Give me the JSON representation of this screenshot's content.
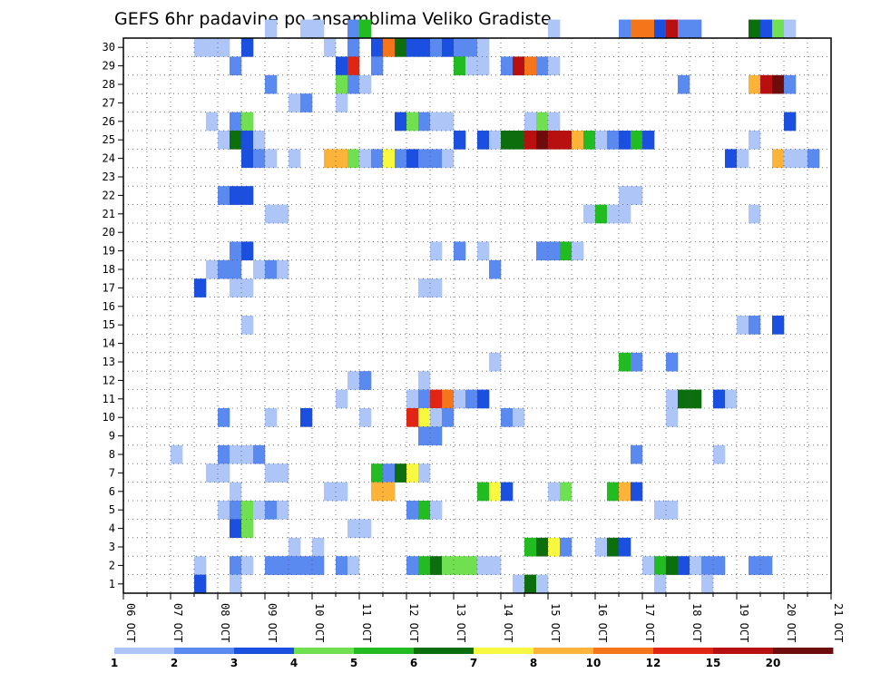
{
  "chart_data": {
    "type": "heatmap",
    "title": "GEFS 6hr padavine po ansamblima Veliko Gradiste",
    "xlabel": "",
    "ylabel": "",
    "x_ticks": [
      "06 OCT",
      "07 OCT",
      "08 OCT",
      "09 OCT",
      "10 OCT",
      "11 OCT",
      "12 OCT",
      "13 OCT",
      "14 OCT",
      "15 OCT",
      "16 OCT",
      "17 OCT",
      "18 OCT",
      "19 OCT",
      "20 OCT",
      "21 OCT"
    ],
    "y_ticks": [
      1,
      2,
      3,
      4,
      5,
      6,
      7,
      8,
      9,
      10,
      11,
      12,
      13,
      14,
      15,
      16,
      17,
      18,
      19,
      20,
      21,
      22,
      23,
      24,
      25,
      26,
      27,
      28,
      29,
      30
    ],
    "x_range_steps": [
      0,
      60
    ],
    "y_range": [
      0,
      30
    ],
    "grid": true,
    "legend_placement": "bottom",
    "legend": {
      "labels": [
        "1",
        "2",
        "3",
        "4",
        "5",
        "6",
        "7",
        "8",
        "10",
        "12",
        "15",
        "20"
      ],
      "colors": [
        "#aec6f7",
        "#5a8af0",
        "#1a4fe0",
        "#70e050",
        "#22bb22",
        "#0d6e0d",
        "#f8f840",
        "#fbb33a",
        "#f5751a",
        "#e02515",
        "#b81010",
        "#6e0b0b"
      ]
    },
    "bins": [
      {
        "min": 1,
        "max": 2,
        "color": "#aec6f7"
      },
      {
        "min": 2,
        "max": 3,
        "color": "#5a8af0"
      },
      {
        "min": 3,
        "max": 4,
        "color": "#1a4fe0"
      },
      {
        "min": 4,
        "max": 5,
        "color": "#70e050"
      },
      {
        "min": 5,
        "max": 6,
        "color": "#22bb22"
      },
      {
        "min": 6,
        "max": 7,
        "color": "#0d6e0d"
      },
      {
        "min": 7,
        "max": 8,
        "color": "#f8f840"
      },
      {
        "min": 8,
        "max": 10,
        "color": "#fbb33a"
      },
      {
        "min": 10,
        "max": 12,
        "color": "#f5751a"
      },
      {
        "min": 12,
        "max": 15,
        "color": "#e02515"
      },
      {
        "min": 15,
        "max": 20,
        "color": "#b81010"
      },
      {
        "min": 20,
        "max": 30,
        "color": "#6e0b0b"
      }
    ],
    "cells": [
      [
        30,
        12,
        0
      ],
      [
        30,
        15,
        0
      ],
      [
        30,
        16,
        0
      ],
      [
        30,
        19,
        1
      ],
      [
        30,
        20,
        4
      ],
      [
        30,
        36,
        0
      ],
      [
        30,
        42,
        1
      ],
      [
        30,
        43,
        8
      ],
      [
        30,
        44,
        8
      ],
      [
        30,
        45,
        2
      ],
      [
        30,
        46,
        10
      ],
      [
        30,
        47,
        1
      ],
      [
        30,
        48,
        1
      ],
      [
        30,
        53,
        5
      ],
      [
        30,
        54,
        2
      ],
      [
        30,
        55,
        3
      ],
      [
        30,
        56,
        0
      ],
      [
        29,
        6,
        0
      ],
      [
        29,
        7,
        0
      ],
      [
        29,
        8,
        0
      ],
      [
        29,
        10,
        2
      ],
      [
        29,
        17,
        0
      ],
      [
        29,
        19,
        1
      ],
      [
        29,
        21,
        2
      ],
      [
        29,
        22,
        8
      ],
      [
        29,
        23,
        5
      ],
      [
        29,
        24,
        2
      ],
      [
        29,
        25,
        2
      ],
      [
        29,
        26,
        1
      ],
      [
        29,
        27,
        2
      ],
      [
        29,
        28,
        1
      ],
      [
        29,
        29,
        1
      ],
      [
        29,
        30,
        0
      ],
      [
        28,
        9,
        1
      ],
      [
        28,
        18,
        2
      ],
      [
        28,
        19,
        9
      ],
      [
        28,
        21,
        1
      ],
      [
        28,
        28,
        4
      ],
      [
        28,
        29,
        0
      ],
      [
        28,
        30,
        0
      ],
      [
        28,
        32,
        1
      ],
      [
        28,
        33,
        10
      ],
      [
        28,
        34,
        8
      ],
      [
        28,
        35,
        1
      ],
      [
        28,
        36,
        0
      ],
      [
        27,
        12,
        1
      ],
      [
        27,
        18,
        3
      ],
      [
        27,
        19,
        1
      ],
      [
        27,
        20,
        0
      ],
      [
        27,
        47,
        1
      ],
      [
        27,
        53,
        7
      ],
      [
        27,
        54,
        10
      ],
      [
        27,
        55,
        11
      ],
      [
        27,
        56,
        1
      ],
      [
        26,
        14,
        0
      ],
      [
        26,
        15,
        1
      ],
      [
        26,
        18,
        0
      ],
      [
        25,
        7,
        0
      ],
      [
        25,
        9,
        1
      ],
      [
        25,
        10,
        3
      ],
      [
        25,
        23,
        2
      ],
      [
        25,
        24,
        3
      ],
      [
        25,
        25,
        1
      ],
      [
        25,
        26,
        0
      ],
      [
        25,
        27,
        0
      ],
      [
        25,
        34,
        0
      ],
      [
        25,
        35,
        3
      ],
      [
        25,
        36,
        0
      ],
      [
        25,
        56,
        2
      ],
      [
        24,
        8,
        0
      ],
      [
        24,
        9,
        5
      ],
      [
        24,
        10,
        2
      ],
      [
        24,
        11,
        0
      ],
      [
        24,
        28,
        2
      ],
      [
        24,
        30,
        2
      ],
      [
        24,
        31,
        0
      ],
      [
        24,
        32,
        5
      ],
      [
        24,
        33,
        5
      ],
      [
        24,
        34,
        10
      ],
      [
        24,
        35,
        11
      ],
      [
        24,
        36,
        10
      ],
      [
        24,
        37,
        10
      ],
      [
        24,
        38,
        7
      ],
      [
        24,
        39,
        4
      ],
      [
        24,
        40,
        0
      ],
      [
        24,
        41,
        1
      ],
      [
        24,
        42,
        2
      ],
      [
        24,
        43,
        4
      ],
      [
        24,
        44,
        2
      ],
      [
        24,
        53,
        0
      ],
      [
        23,
        10,
        2
      ],
      [
        23,
        11,
        1
      ],
      [
        23,
        12,
        0
      ],
      [
        23,
        14,
        0
      ],
      [
        23,
        17,
        7
      ],
      [
        23,
        18,
        7
      ],
      [
        23,
        19,
        3
      ],
      [
        23,
        20,
        0
      ],
      [
        23,
        21,
        1
      ],
      [
        23,
        22,
        6
      ],
      [
        23,
        23,
        1
      ],
      [
        23,
        24,
        2
      ],
      [
        23,
        25,
        1
      ],
      [
        23,
        26,
        1
      ],
      [
        23,
        27,
        0
      ],
      [
        23,
        51,
        2
      ],
      [
        23,
        52,
        0
      ],
      [
        23,
        55,
        7
      ],
      [
        23,
        56,
        0
      ],
      [
        23,
        57,
        0
      ],
      [
        23,
        58,
        1
      ],
      [
        21,
        8,
        1
      ],
      [
        21,
        9,
        2
      ],
      [
        21,
        10,
        2
      ],
      [
        21,
        42,
        0
      ],
      [
        21,
        43,
        0
      ],
      [
        20,
        12,
        0
      ],
      [
        20,
        13,
        0
      ],
      [
        20,
        39,
        0
      ],
      [
        20,
        40,
        4
      ],
      [
        20,
        41,
        0
      ],
      [
        20,
        42,
        0
      ],
      [
        20,
        53,
        0
      ],
      [
        18,
        9,
        1
      ],
      [
        18,
        10,
        2
      ],
      [
        18,
        26,
        0
      ],
      [
        18,
        28,
        1
      ],
      [
        18,
        30,
        0
      ],
      [
        18,
        35,
        1
      ],
      [
        18,
        36,
        1
      ],
      [
        18,
        37,
        4
      ],
      [
        18,
        38,
        0
      ],
      [
        17,
        7,
        0
      ],
      [
        17,
        8,
        1
      ],
      [
        17,
        9,
        1
      ],
      [
        17,
        11,
        0
      ],
      [
        17,
        12,
        1
      ],
      [
        17,
        13,
        0
      ],
      [
        17,
        31,
        1
      ],
      [
        16,
        6,
        2
      ],
      [
        16,
        9,
        0
      ],
      [
        16,
        10,
        0
      ],
      [
        16,
        25,
        0
      ],
      [
        16,
        26,
        0
      ],
      [
        14,
        10,
        0
      ],
      [
        14,
        52,
        0
      ],
      [
        14,
        53,
        1
      ],
      [
        14,
        55,
        2
      ],
      [
        12,
        31,
        0
      ],
      [
        12,
        42,
        4
      ],
      [
        12,
        43,
        1
      ],
      [
        12,
        46,
        1
      ],
      [
        11,
        19,
        0
      ],
      [
        11,
        20,
        1
      ],
      [
        11,
        25,
        0
      ],
      [
        10,
        18,
        0
      ],
      [
        10,
        24,
        0
      ],
      [
        10,
        25,
        1
      ],
      [
        10,
        26,
        9
      ],
      [
        10,
        27,
        8
      ],
      [
        10,
        28,
        0
      ],
      [
        10,
        29,
        1
      ],
      [
        10,
        30,
        2
      ],
      [
        10,
        46,
        0
      ],
      [
        10,
        47,
        5
      ],
      [
        10,
        48,
        5
      ],
      [
        10,
        50,
        2
      ],
      [
        10,
        51,
        0
      ],
      [
        9,
        8,
        1
      ],
      [
        9,
        12,
        0
      ],
      [
        9,
        15,
        2
      ],
      [
        9,
        20,
        0
      ],
      [
        9,
        24,
        9
      ],
      [
        9,
        25,
        6
      ],
      [
        9,
        26,
        0
      ],
      [
        9,
        27,
        1
      ],
      [
        9,
        32,
        1
      ],
      [
        9,
        33,
        0
      ],
      [
        9,
        46,
        0
      ],
      [
        8,
        25,
        1
      ],
      [
        8,
        26,
        1
      ],
      [
        7,
        4,
        0
      ],
      [
        7,
        8,
        1
      ],
      [
        7,
        9,
        0
      ],
      [
        7,
        10,
        0
      ],
      [
        7,
        11,
        1
      ],
      [
        7,
        43,
        1
      ],
      [
        7,
        50,
        0
      ],
      [
        6,
        7,
        0
      ],
      [
        6,
        8,
        0
      ],
      [
        6,
        12,
        0
      ],
      [
        6,
        13,
        0
      ],
      [
        6,
        21,
        4
      ],
      [
        6,
        22,
        1
      ],
      [
        6,
        23,
        5
      ],
      [
        6,
        24,
        6
      ],
      [
        6,
        25,
        0
      ],
      [
        5,
        9,
        0
      ],
      [
        5,
        17,
        0
      ],
      [
        5,
        18,
        0
      ],
      [
        5,
        21,
        7
      ],
      [
        5,
        22,
        7
      ],
      [
        5,
        30,
        4
      ],
      [
        5,
        31,
        6
      ],
      [
        5,
        32,
        2
      ],
      [
        5,
        36,
        0
      ],
      [
        5,
        37,
        3
      ],
      [
        5,
        41,
        4
      ],
      [
        5,
        42,
        7
      ],
      [
        5,
        43,
        2
      ],
      [
        4,
        8,
        0
      ],
      [
        4,
        9,
        1
      ],
      [
        4,
        10,
        3
      ],
      [
        4,
        11,
        0
      ],
      [
        4,
        12,
        1
      ],
      [
        4,
        13,
        0
      ],
      [
        4,
        24,
        1
      ],
      [
        4,
        25,
        4
      ],
      [
        4,
        26,
        0
      ],
      [
        4,
        45,
        0
      ],
      [
        4,
        46,
        0
      ],
      [
        3,
        9,
        2
      ],
      [
        3,
        10,
        3
      ],
      [
        3,
        19,
        0
      ],
      [
        3,
        20,
        0
      ],
      [
        2,
        14,
        0
      ],
      [
        2,
        16,
        0
      ],
      [
        2,
        34,
        4
      ],
      [
        2,
        35,
        5
      ],
      [
        2,
        36,
        6
      ],
      [
        2,
        37,
        1
      ],
      [
        2,
        40,
        0
      ],
      [
        2,
        41,
        5
      ],
      [
        2,
        42,
        2
      ],
      [
        1,
        6,
        0
      ],
      [
        1,
        9,
        1
      ],
      [
        1,
        10,
        0
      ],
      [
        1,
        12,
        1
      ],
      [
        1,
        13,
        1
      ],
      [
        1,
        14,
        1
      ],
      [
        1,
        15,
        1
      ],
      [
        1,
        16,
        1
      ],
      [
        1,
        18,
        1
      ],
      [
        1,
        19,
        0
      ],
      [
        1,
        24,
        1
      ],
      [
        1,
        25,
        4
      ],
      [
        1,
        26,
        5
      ],
      [
        1,
        27,
        3
      ],
      [
        1,
        28,
        3
      ],
      [
        1,
        29,
        3
      ],
      [
        1,
        30,
        0
      ],
      [
        1,
        31,
        0
      ],
      [
        1,
        44,
        0
      ],
      [
        1,
        45,
        4
      ],
      [
        1,
        46,
        5
      ],
      [
        1,
        47,
        2
      ],
      [
        1,
        48,
        0
      ],
      [
        1,
        49,
        1
      ],
      [
        1,
        50,
        1
      ],
      [
        1,
        53,
        1
      ],
      [
        1,
        54,
        1
      ],
      [
        0,
        6,
        2
      ],
      [
        0,
        9,
        0
      ],
      [
        0,
        33,
        0
      ],
      [
        0,
        34,
        5
      ],
      [
        0,
        35,
        0
      ],
      [
        0,
        45,
        0
      ],
      [
        0,
        49,
        0
      ]
    ]
  }
}
